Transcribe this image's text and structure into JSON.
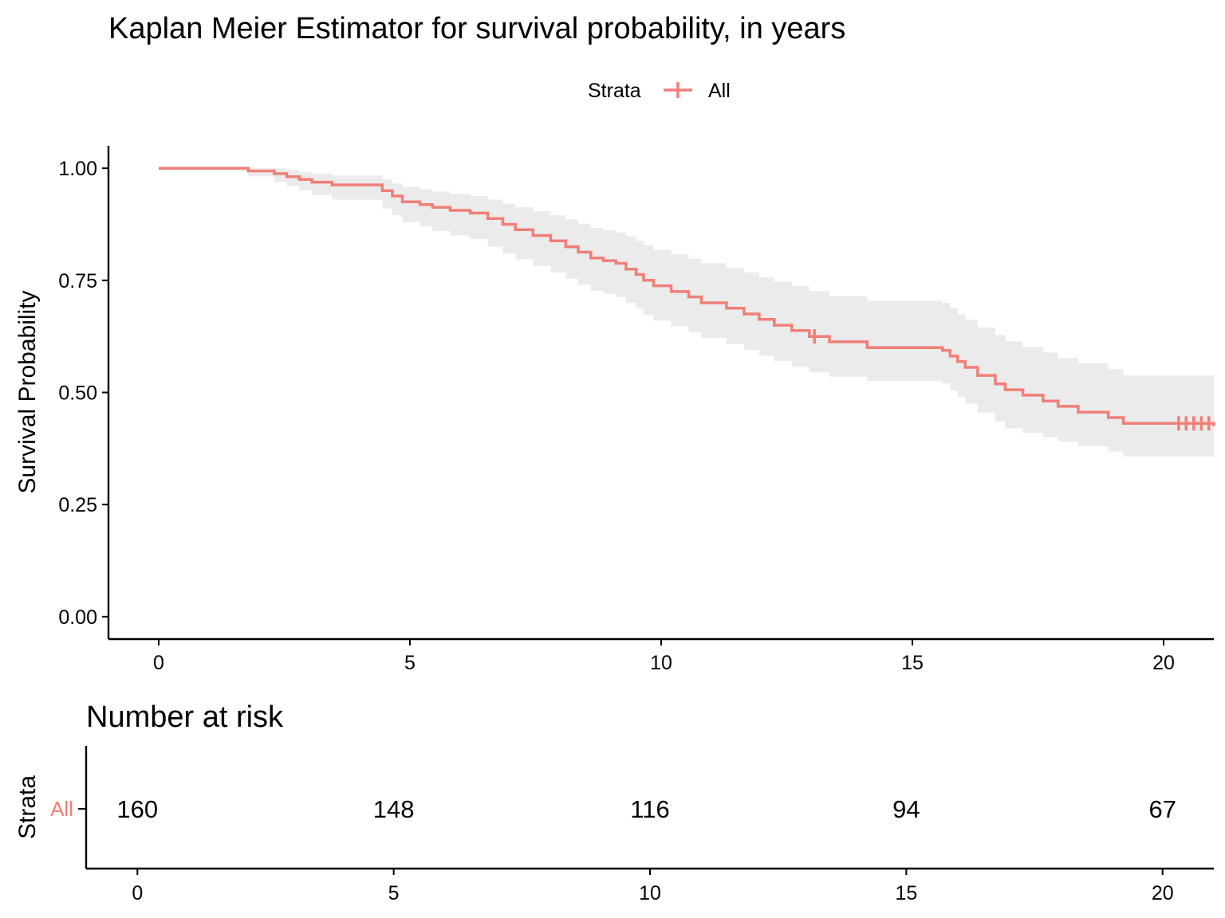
{
  "chart_data": [
    {
      "type": "line",
      "title": "Kaplan Meier Estimator for survival probability, in years",
      "xlabel": "",
      "ylabel": "Survival Probability",
      "xlim": [
        -1.0,
        21.0
      ],
      "ylim": [
        -0.05,
        1.05
      ],
      "x_ticks": [
        0,
        5,
        10,
        15,
        20
      ],
      "y_ticks": [
        0.0,
        0.25,
        0.5,
        0.75,
        1.0
      ],
      "y_tick_labels": [
        "0.00",
        "0.25",
        "0.50",
        "0.75",
        "1.00"
      ],
      "grid": false,
      "legend": {
        "position": "top",
        "title": "Strata",
        "entries": [
          "All"
        ]
      },
      "colors": {
        "series": "#F07F78",
        "confidence_band": "#EBEBEB",
        "axis": "#000000"
      },
      "series": [
        {
          "name": "All",
          "step": true,
          "x": [
            0.0,
            1.78,
            2.3,
            2.55,
            2.8,
            3.05,
            3.45,
            4.2,
            4.45,
            4.65,
            4.85,
            5.2,
            5.45,
            5.8,
            6.2,
            6.55,
            6.85,
            7.1,
            7.45,
            7.8,
            8.1,
            8.35,
            8.6,
            8.85,
            9.1,
            9.3,
            9.5,
            9.65,
            9.85,
            10.2,
            10.55,
            10.8,
            11.3,
            11.65,
            11.95,
            12.25,
            12.6,
            12.95,
            13.35,
            14.1,
            15.6,
            15.75,
            15.9,
            16.05,
            16.3,
            16.65,
            16.85,
            17.2,
            17.6,
            17.9,
            18.3,
            18.9,
            19.2,
            21.0
          ],
          "y": [
            1.0,
            0.994,
            0.988,
            0.981,
            0.975,
            0.969,
            0.963,
            0.963,
            0.95,
            0.938,
            0.925,
            0.919,
            0.913,
            0.906,
            0.9,
            0.888,
            0.875,
            0.863,
            0.85,
            0.838,
            0.825,
            0.813,
            0.8,
            0.794,
            0.788,
            0.775,
            0.763,
            0.75,
            0.738,
            0.725,
            0.713,
            0.7,
            0.688,
            0.675,
            0.663,
            0.65,
            0.638,
            0.625,
            0.613,
            0.6,
            0.594,
            0.581,
            0.569,
            0.556,
            0.538,
            0.519,
            0.506,
            0.494,
            0.481,
            0.469,
            0.456,
            0.444,
            0.431,
            0.425
          ],
          "ci_lower": [
            1.0,
            0.982,
            0.97,
            0.96,
            0.95,
            0.94,
            0.93,
            0.93,
            0.91,
            0.895,
            0.88,
            0.87,
            0.86,
            0.85,
            0.842,
            0.825,
            0.81,
            0.797,
            0.782,
            0.768,
            0.754,
            0.74,
            0.727,
            0.72,
            0.713,
            0.7,
            0.687,
            0.673,
            0.66,
            0.647,
            0.634,
            0.621,
            0.608,
            0.595,
            0.582,
            0.57,
            0.557,
            0.545,
            0.535,
            0.525,
            0.52,
            0.505,
            0.49,
            0.475,
            0.455,
            0.435,
            0.42,
            0.41,
            0.4,
            0.39,
            0.38,
            0.368,
            0.357,
            0.357
          ],
          "ci_upper": [
            1.0,
            1.0,
            1.0,
            0.997,
            0.992,
            0.988,
            0.984,
            0.984,
            0.975,
            0.966,
            0.958,
            0.953,
            0.948,
            0.943,
            0.938,
            0.93,
            0.921,
            0.913,
            0.904,
            0.895,
            0.886,
            0.876,
            0.867,
            0.862,
            0.857,
            0.848,
            0.838,
            0.828,
            0.818,
            0.808,
            0.798,
            0.788,
            0.778,
            0.768,
            0.757,
            0.747,
            0.737,
            0.726,
            0.715,
            0.705,
            0.7,
            0.688,
            0.674,
            0.662,
            0.645,
            0.628,
            0.614,
            0.602,
            0.589,
            0.577,
            0.565,
            0.552,
            0.538,
            0.53
          ],
          "censor_x": [
            13.05,
            20.3,
            20.45,
            20.6,
            20.75,
            20.9
          ]
        }
      ]
    },
    {
      "type": "table",
      "title": "Number at risk",
      "ylabel": "Strata",
      "row_labels": [
        "All"
      ],
      "x": [
        0,
        5,
        10,
        15,
        20
      ],
      "x_tick_labels": [
        "0",
        "5",
        "10",
        "15",
        "20"
      ],
      "values": [
        [
          160,
          148,
          116,
          94,
          67
        ]
      ]
    }
  ]
}
